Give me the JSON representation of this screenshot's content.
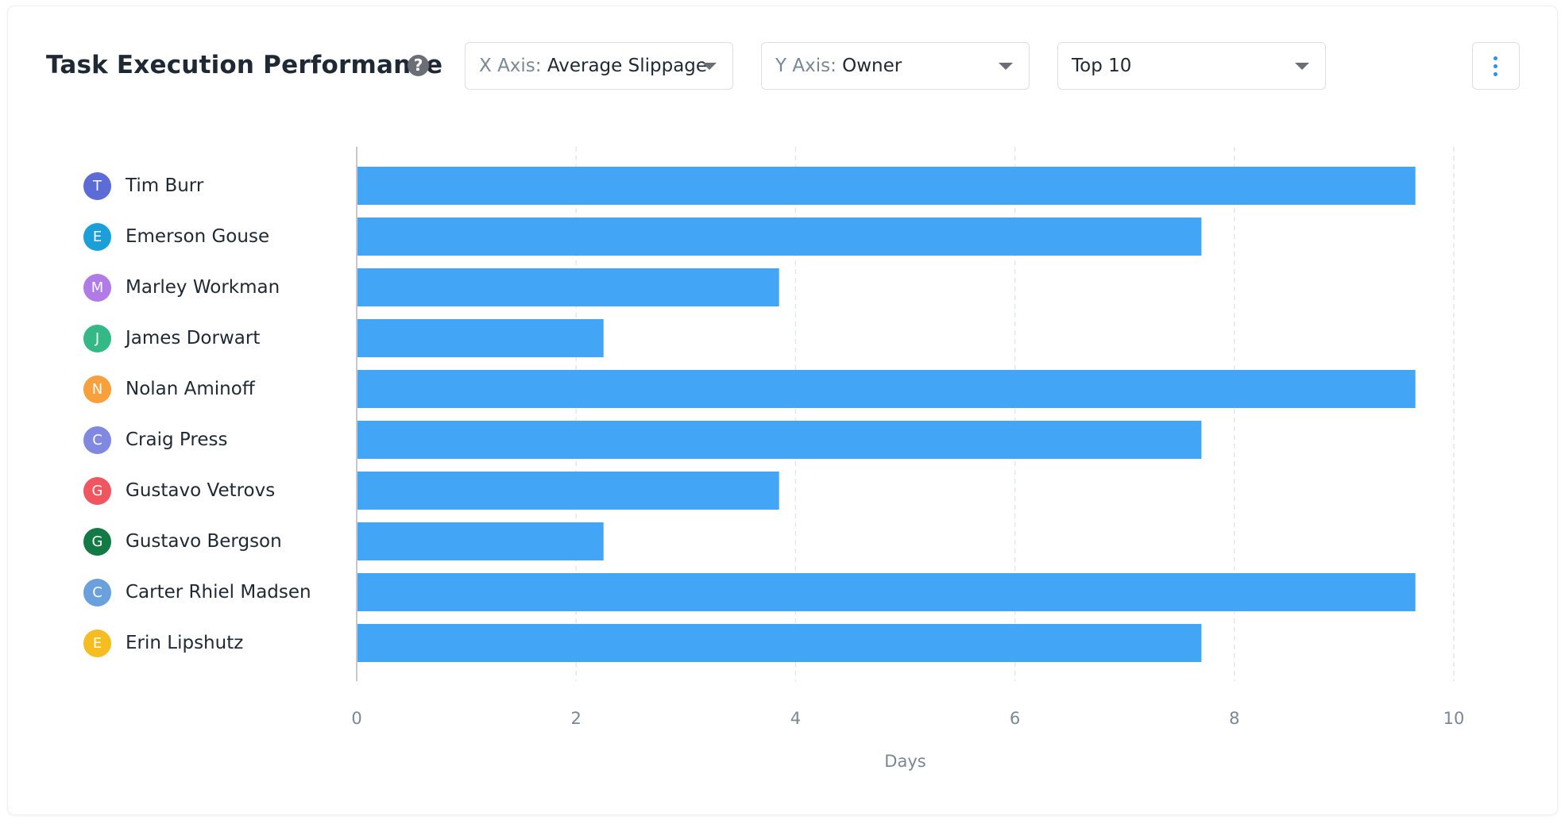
{
  "header": {
    "title": "Task Execution Performance",
    "help_icon": "question-circle-icon",
    "x_axis_dropdown": {
      "prefix": "X Axis:",
      "value": "Average Slippage"
    },
    "y_axis_dropdown": {
      "prefix": "Y Axis:",
      "value": "Owner"
    },
    "top_dropdown": {
      "value": "Top 10"
    },
    "more_menu_icon": "vertical-dots-icon"
  },
  "colors": {
    "bar": "#42a5f5",
    "grid": "#e3e6ea",
    "axis": "#c4c9cf"
  },
  "chart_data": {
    "type": "bar",
    "orientation": "horizontal",
    "categories": [
      "Tim Burr",
      "Emerson Gouse",
      "Marley Workman",
      "James Dorwart",
      "Nolan Aminoff",
      "Craig Press",
      "Gustavo Vetrovs",
      "Gustavo Bergson",
      "Carter Rhiel Madsen",
      "Erin Lipshutz"
    ],
    "values": [
      9.65,
      7.7,
      3.85,
      2.25,
      9.65,
      7.7,
      3.85,
      2.25,
      9.65,
      7.7
    ],
    "xlabel": "Days",
    "ylabel": "",
    "xlim": [
      0,
      10
    ],
    "xticks": [
      "0",
      "2",
      "4",
      "6",
      "8",
      "10"
    ],
    "grid": true,
    "grid_style": "dashed vertical"
  },
  "owners": [
    {
      "initial": "T",
      "name": "Tim Burr",
      "color": "#5c6bd6"
    },
    {
      "initial": "E",
      "name": "Emerson Gouse",
      "color": "#1a9fd8"
    },
    {
      "initial": "M",
      "name": "Marley Workman",
      "color": "#b07be6"
    },
    {
      "initial": "J",
      "name": "James Dorwart",
      "color": "#34b886"
    },
    {
      "initial": "N",
      "name": "Nolan Aminoff",
      "color": "#f7a03c"
    },
    {
      "initial": "C",
      "name": "Craig Press",
      "color": "#8088e0"
    },
    {
      "initial": "G",
      "name": "Gustavo Vetrovs",
      "color": "#f0565f"
    },
    {
      "initial": "G",
      "name": "Gustavo Bergson",
      "color": "#137a45"
    },
    {
      "initial": "C",
      "name": "Carter Rhiel Madsen",
      "color": "#6aa0dc"
    },
    {
      "initial": "E",
      "name": "Erin Lipshutz",
      "color": "#f5bd1f"
    }
  ]
}
